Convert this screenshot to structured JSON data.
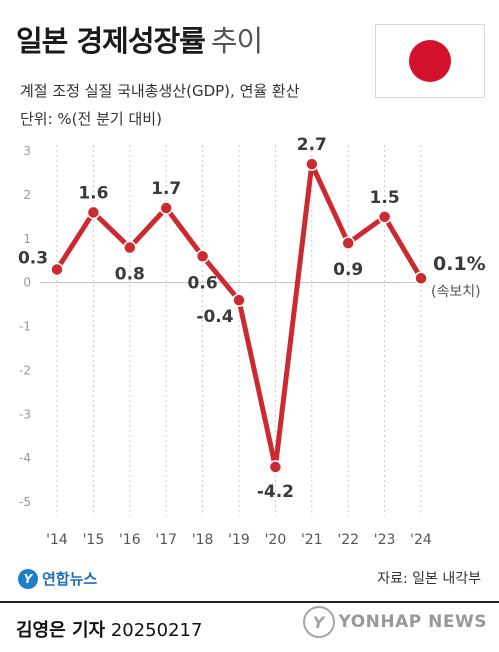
{
  "title": {
    "main": "일본 경제성장률",
    "sub": "추이"
  },
  "subtitle": "계절 조정 실질 국내총생산(GDP), 연율 환산",
  "unit": "단위: %(전 분기 대비)",
  "flag": {
    "name": "Japan",
    "disc_color": "#d1122a"
  },
  "chart_data": {
    "type": "line",
    "categories": [
      "'14",
      "'15",
      "'16",
      "'17",
      "'18",
      "'19",
      "'20",
      "'21",
      "'22",
      "'23",
      "'24"
    ],
    "series": [
      {
        "values": [
          0.3,
          1.6,
          0.8,
          1.7,
          0.6,
          -0.4,
          -4.2,
          2.7,
          0.9,
          1.5,
          0.1
        ],
        "color": "#cc2a2f"
      }
    ],
    "data_labels": [
      "0.3",
      "1.6",
      "0.8",
      "1.7",
      "0.6",
      "-0.4",
      "-4.2",
      "2.7",
      "0.9",
      "1.5",
      "0.1%"
    ],
    "last_point_note": "(속보치)",
    "y_ticks": [
      "3",
      "2",
      "1",
      "0",
      "-1",
      "-2",
      "-3",
      "-4",
      "-5"
    ],
    "ylim": [
      -5,
      3
    ],
    "grid": "vertical dotted",
    "title": "일본 경제성장률 추이"
  },
  "footer": {
    "logo_text": "연합뉴스",
    "source": "자료: 일본 내각부",
    "byline_name": "김영은 기자",
    "date": "20250217",
    "watermark": "YONHAP NEWS"
  }
}
